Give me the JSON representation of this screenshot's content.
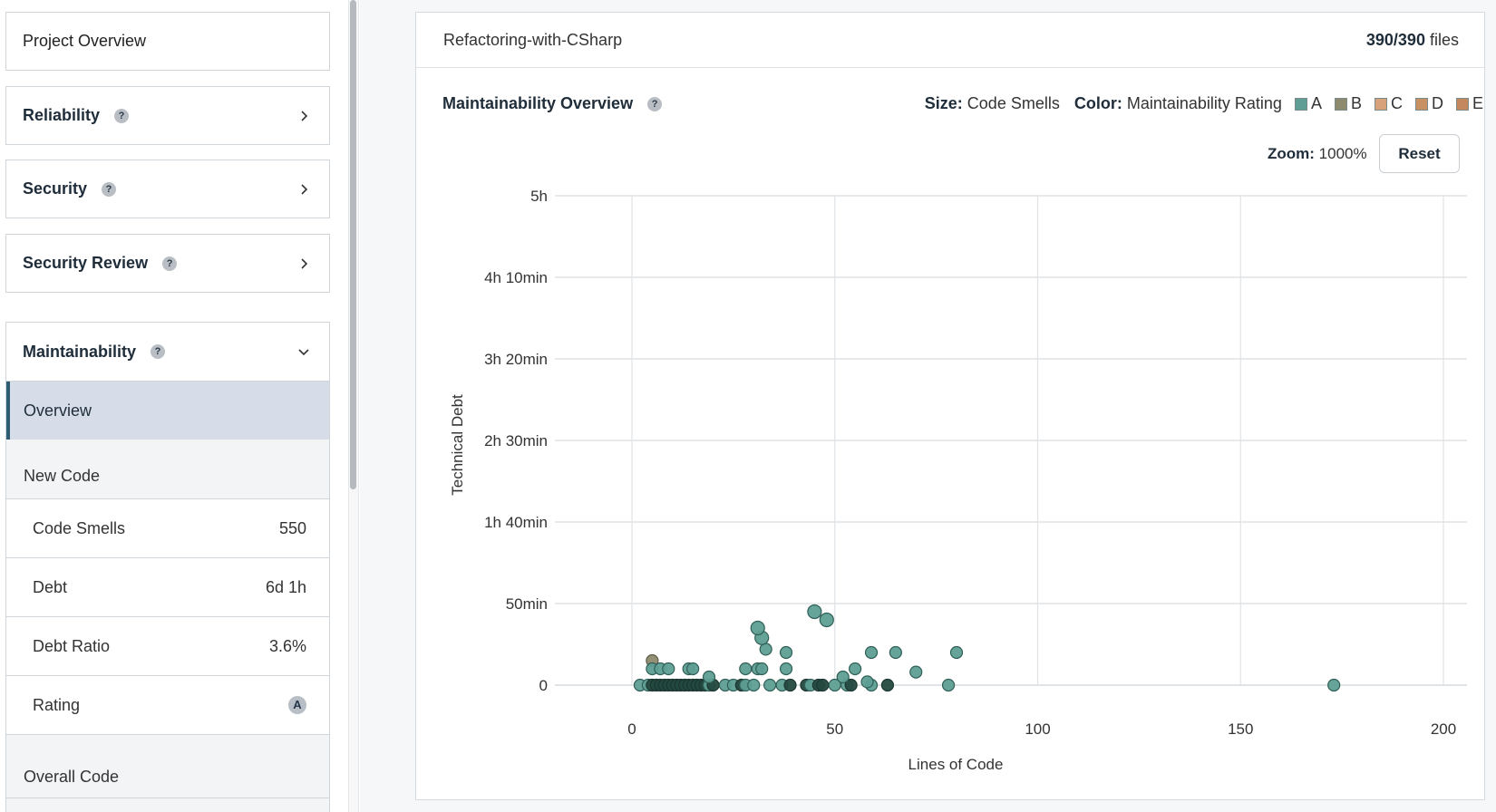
{
  "sidebar": {
    "project_overview": "Project Overview",
    "reliability": "Reliability",
    "security": "Security",
    "security_review": "Security Review",
    "maintainability": "Maintainability",
    "help_glyph": "?",
    "overview": "Overview",
    "new_code": "New Code",
    "metrics": [
      {
        "label": "Code Smells",
        "value": "550"
      },
      {
        "label": "Debt",
        "value": "6d 1h"
      },
      {
        "label": "Debt Ratio",
        "value": "3.6%"
      }
    ],
    "rating_label": "Rating",
    "rating_value": "A",
    "overall_code": "Overall Code"
  },
  "panel": {
    "project_name": "Refactoring-with-CSharp",
    "files_count": "390/390",
    "files_suffix": "files",
    "chart_title": "Maintainability Overview",
    "size_label": "Size:",
    "size_value": "Code Smells",
    "color_label": "Color:",
    "color_value": "Maintainability Rating",
    "ratings": [
      {
        "label": "A",
        "color": "#5e9e94"
      },
      {
        "label": "B",
        "color": "#8e8a6e"
      },
      {
        "label": "C",
        "color": "#d7a27a"
      },
      {
        "label": "D",
        "color": "#c99063"
      },
      {
        "label": "E",
        "color": "#c4885e"
      }
    ],
    "zoom_label": "Zoom:",
    "zoom_value": "1000%",
    "reset_label": "Reset"
  },
  "chart_data": {
    "type": "scatter",
    "xlabel": "Lines of Code",
    "ylabel": "Technical Debt",
    "xlim": [
      0,
      200
    ],
    "x_ticks": [
      0,
      50,
      100,
      150,
      200
    ],
    "y_ticks_minutes": [
      0,
      50,
      100,
      150,
      200,
      250,
      300
    ],
    "y_tick_labels": [
      "0",
      "50min",
      "1h 40min",
      "2h 30min",
      "3h 20min",
      "4h 10min",
      "5h"
    ],
    "grid": true,
    "colors": {
      "A": "#5e9e94",
      "A_dark": "#24493f",
      "B": "#8e8a6e"
    },
    "points": [
      {
        "x": 2,
        "y": 0,
        "r": "A"
      },
      {
        "x": 4,
        "y": 0,
        "r": "A"
      },
      {
        "x": 5,
        "y": 0,
        "r": "A2"
      },
      {
        "x": 6,
        "y": 0,
        "r": "A2"
      },
      {
        "x": 7,
        "y": 0,
        "r": "A2"
      },
      {
        "x": 8,
        "y": 0,
        "r": "A2"
      },
      {
        "x": 9,
        "y": 0,
        "r": "A2"
      },
      {
        "x": 10,
        "y": 0,
        "r": "A2"
      },
      {
        "x": 11,
        "y": 0,
        "r": "A2"
      },
      {
        "x": 12,
        "y": 0,
        "r": "A2"
      },
      {
        "x": 13,
        "y": 0,
        "r": "A2"
      },
      {
        "x": 14,
        "y": 0,
        "r": "A2"
      },
      {
        "x": 15,
        "y": 0,
        "r": "A2"
      },
      {
        "x": 16,
        "y": 0,
        "r": "A2"
      },
      {
        "x": 17,
        "y": 0,
        "r": "A2"
      },
      {
        "x": 18,
        "y": 0,
        "r": "A2"
      },
      {
        "x": 19,
        "y": 0,
        "r": "A"
      },
      {
        "x": 20,
        "y": 0,
        "r": "A2"
      },
      {
        "x": 23,
        "y": 0,
        "r": "A"
      },
      {
        "x": 25,
        "y": 0,
        "r": "A"
      },
      {
        "x": 27,
        "y": 0,
        "r": "A2"
      },
      {
        "x": 28,
        "y": 0,
        "r": "A"
      },
      {
        "x": 30,
        "y": 0,
        "r": "A"
      },
      {
        "x": 34,
        "y": 0,
        "r": "A"
      },
      {
        "x": 37,
        "y": 0,
        "r": "A"
      },
      {
        "x": 39,
        "y": 0,
        "r": "A2"
      },
      {
        "x": 43,
        "y": 0,
        "r": "A2"
      },
      {
        "x": 44,
        "y": 0,
        "r": "A"
      },
      {
        "x": 46,
        "y": 0,
        "r": "A2"
      },
      {
        "x": 47,
        "y": 0,
        "r": "A2"
      },
      {
        "x": 50,
        "y": 0,
        "r": "A"
      },
      {
        "x": 53,
        "y": 0,
        "r": "A"
      },
      {
        "x": 54,
        "y": 0,
        "r": "A2"
      },
      {
        "x": 59,
        "y": 0,
        "r": "A"
      },
      {
        "x": 63,
        "y": 0,
        "r": "A2"
      },
      {
        "x": 78,
        "y": 0,
        "r": "A"
      },
      {
        "x": 173,
        "y": 0,
        "r": "A"
      },
      {
        "x": 5,
        "y": 15,
        "r": "B"
      },
      {
        "x": 5,
        "y": 10,
        "r": "A"
      },
      {
        "x": 7,
        "y": 10,
        "r": "A"
      },
      {
        "x": 9,
        "y": 10,
        "r": "A"
      },
      {
        "x": 14,
        "y": 10,
        "r": "A"
      },
      {
        "x": 15,
        "y": 10,
        "r": "A"
      },
      {
        "x": 28,
        "y": 10,
        "r": "A"
      },
      {
        "x": 31,
        "y": 10,
        "r": "A"
      },
      {
        "x": 32,
        "y": 10,
        "r": "A"
      },
      {
        "x": 38,
        "y": 10,
        "r": "A"
      },
      {
        "x": 55,
        "y": 10,
        "r": "A"
      },
      {
        "x": 19,
        "y": 5,
        "r": "A"
      },
      {
        "x": 52,
        "y": 5,
        "r": "A"
      },
      {
        "x": 58,
        "y": 2,
        "r": "A"
      },
      {
        "x": 70,
        "y": 8,
        "r": "A"
      },
      {
        "x": 38,
        "y": 20,
        "r": "A"
      },
      {
        "x": 59,
        "y": 20,
        "r": "A"
      },
      {
        "x": 65,
        "y": 20,
        "r": "A"
      },
      {
        "x": 80,
        "y": 20,
        "r": "A"
      },
      {
        "x": 33,
        "y": 22,
        "r": "A"
      },
      {
        "x": 32,
        "y": 29,
        "r": "A"
      },
      {
        "x": 31,
        "y": 35,
        "r": "A"
      },
      {
        "x": 45,
        "y": 45,
        "r": "A"
      },
      {
        "x": 48,
        "y": 40,
        "r": "A"
      }
    ]
  }
}
